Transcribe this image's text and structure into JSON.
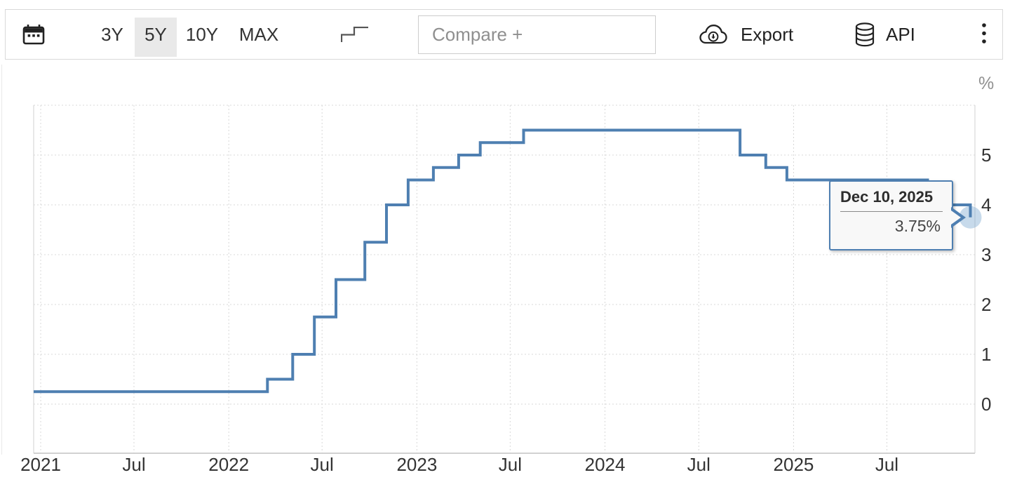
{
  "toolbar": {
    "ranges": [
      "3Y",
      "5Y",
      "10Y",
      "MAX"
    ],
    "active_range": "5Y",
    "compare_placeholder": "Compare +",
    "export_label": "Export",
    "api_label": "API",
    "icons": [
      "calendar-icon",
      "step-line-icon",
      "cloud-download-icon",
      "database-icon",
      "kebab-menu-icon"
    ]
  },
  "chart_data": {
    "type": "line",
    "step": true,
    "title": "",
    "xlabel": "",
    "ylabel": "%",
    "y_unit": "%",
    "grid": true,
    "legend": "none",
    "ylim": [
      -1,
      6
    ],
    "y_ticks": [
      0,
      1,
      2,
      3,
      4,
      5
    ],
    "x_ticks": [
      {
        "label": "2021",
        "date": "2021-01-01"
      },
      {
        "label": "Jul",
        "date": "2021-07-01"
      },
      {
        "label": "2022",
        "date": "2022-01-01"
      },
      {
        "label": "Jul",
        "date": "2022-07-01"
      },
      {
        "label": "2023",
        "date": "2023-01-01"
      },
      {
        "label": "Jul",
        "date": "2023-07-01"
      },
      {
        "label": "2024",
        "date": "2024-01-01"
      },
      {
        "label": "Jul",
        "date": "2024-07-01"
      },
      {
        "label": "2025",
        "date": "2025-01-01"
      },
      {
        "label": "Jul",
        "date": "2025-07-01"
      }
    ],
    "series": [
      {
        "color": "#4e7fb1",
        "points": [
          [
            "2020-12-15",
            0.25
          ],
          [
            "2022-03-17",
            0.5
          ],
          [
            "2022-05-05",
            1.0
          ],
          [
            "2022-06-16",
            1.75
          ],
          [
            "2022-07-28",
            2.5
          ],
          [
            "2022-09-22",
            3.25
          ],
          [
            "2022-11-03",
            4.0
          ],
          [
            "2022-12-15",
            4.5
          ],
          [
            "2023-02-02",
            4.75
          ],
          [
            "2023-03-23",
            5.0
          ],
          [
            "2023-05-04",
            5.25
          ],
          [
            "2023-07-27",
            5.5
          ],
          [
            "2024-09-19",
            5.0
          ],
          [
            "2024-11-08",
            4.75
          ],
          [
            "2024-12-19",
            4.5
          ],
          [
            "2025-09-18",
            4.25
          ],
          [
            "2025-10-30",
            4.0
          ],
          [
            "2025-12-10",
            3.75
          ]
        ]
      }
    ],
    "last_point": {
      "date": "2025-12-10",
      "value": 3.75
    },
    "tooltip": {
      "date_label": "Dec 10, 2025",
      "value_label": "3.75%"
    },
    "colors": {
      "line": "#4e7fb1",
      "halo": "#7aa6d0",
      "grid": "#d8d8d8",
      "tooltip_border": "#4e7fb1"
    }
  }
}
